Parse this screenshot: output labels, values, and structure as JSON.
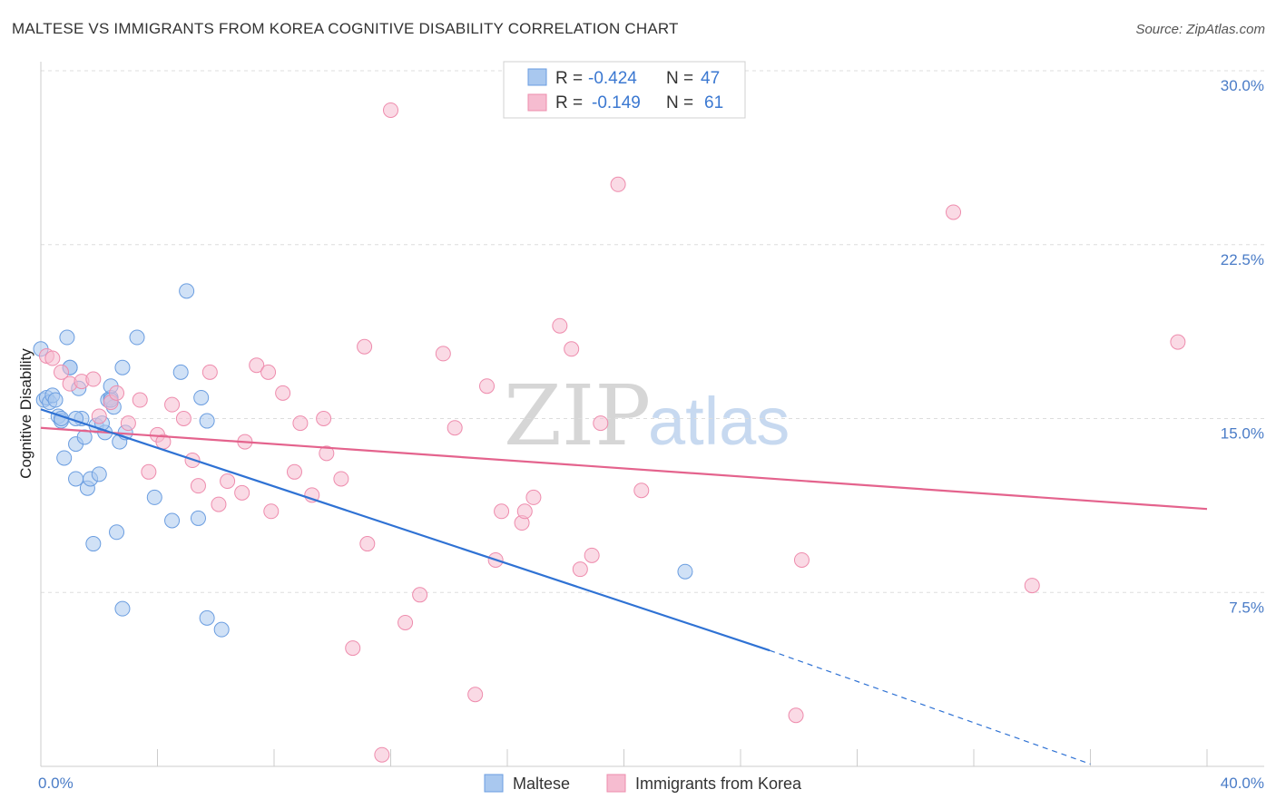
{
  "header": {
    "title": "MALTESE VS IMMIGRANTS FROM KOREA COGNITIVE DISABILITY CORRELATION CHART",
    "source": "Source: ZipAtlas.com"
  },
  "watermark": {
    "part1": "ZIP",
    "part2": "atlas"
  },
  "legend": {
    "rows": [
      {
        "r_label": "R =",
        "r_value": "-0.424",
        "n_label": "N =",
        "n_value": "47"
      },
      {
        "r_label": "R =",
        "r_value": "-0.149",
        "n_label": "N =",
        "n_value": "61"
      }
    ]
  },
  "bottom_legend": {
    "series1": "Maltese",
    "series2": "Immigrants from Korea"
  },
  "colors": {
    "blue_fill": "#a9c8ef",
    "blue_stroke": "#6a9de0",
    "blue_line": "#2f72d4",
    "pink_fill": "#f6bcd0",
    "pink_stroke": "#ee8cad",
    "pink_line": "#e4638d",
    "accent_text": "#3b78d1"
  },
  "chart_data": {
    "type": "scatter",
    "title": "MALTESE VS IMMIGRANTS FROM KOREA COGNITIVE DISABILITY CORRELATION CHART",
    "xlabel": "",
    "ylabel": "Cognitive Disability",
    "xlim": [
      0,
      40
    ],
    "ylim": [
      0,
      30
    ],
    "x_tick_labels": [
      "0.0%",
      "40.0%"
    ],
    "y_ticks": [
      7.5,
      15.0,
      22.5,
      30.0
    ],
    "y_tick_labels": [
      "7.5%",
      "15.0%",
      "22.5%",
      "30.0%"
    ],
    "series": [
      {
        "name": "Maltese",
        "r": -0.424,
        "n": 47,
        "trend": {
          "x0": 0,
          "y0": 15.4,
          "x1": 25,
          "y1": 5.0,
          "dash_x_end": 36,
          "dash_y_end": 0.1
        },
        "points": [
          [
            0,
            18.0
          ],
          [
            0.1,
            15.8
          ],
          [
            0.2,
            15.9
          ],
          [
            0.3,
            15.7
          ],
          [
            0.4,
            16.0
          ],
          [
            0.5,
            15.8
          ],
          [
            0.6,
            15.1
          ],
          [
            0.7,
            14.9
          ],
          [
            0.8,
            13.3
          ],
          [
            0.9,
            18.5
          ],
          [
            1.0,
            17.2
          ],
          [
            1.2,
            13.9
          ],
          [
            1.2,
            12.4
          ],
          [
            1.3,
            16.3
          ],
          [
            1.4,
            15.0
          ],
          [
            1.5,
            14.2
          ],
          [
            1.6,
            12.0
          ],
          [
            1.7,
            12.4
          ],
          [
            1.8,
            9.6
          ],
          [
            1.9,
            14.7
          ],
          [
            2.0,
            12.6
          ],
          [
            2.2,
            14.4
          ],
          [
            2.3,
            15.8
          ],
          [
            2.4,
            15.9
          ],
          [
            2.5,
            15.5
          ],
          [
            2.6,
            10.1
          ],
          [
            2.7,
            14.0
          ],
          [
            2.8,
            6.8
          ],
          [
            2.8,
            17.2
          ],
          [
            2.9,
            14.4
          ],
          [
            2.4,
            16.4
          ],
          [
            3.3,
            18.5
          ],
          [
            3.9,
            11.6
          ],
          [
            4.5,
            10.6
          ],
          [
            4.8,
            17.0
          ],
          [
            5.0,
            20.5
          ],
          [
            5.4,
            10.7
          ],
          [
            5.5,
            15.9
          ],
          [
            5.7,
            14.9
          ],
          [
            5.7,
            6.4
          ],
          [
            6.2,
            5.9
          ],
          [
            2.1,
            14.8
          ],
          [
            0.7,
            15.0
          ],
          [
            1.0,
            17.2
          ],
          [
            2.4,
            15.8
          ],
          [
            1.2,
            15.0
          ],
          [
            22.1,
            8.4
          ]
        ]
      },
      {
        "name": "Immigrants from Korea",
        "r": -0.149,
        "n": 61,
        "trend": {
          "x0": 0,
          "y0": 14.6,
          "x1": 40,
          "y1": 11.1
        },
        "points": [
          [
            0.2,
            17.7
          ],
          [
            0.4,
            17.6
          ],
          [
            0.7,
            17.0
          ],
          [
            1.0,
            16.5
          ],
          [
            1.4,
            16.6
          ],
          [
            1.8,
            16.7
          ],
          [
            2.0,
            15.1
          ],
          [
            2.4,
            15.7
          ],
          [
            2.6,
            16.1
          ],
          [
            3.0,
            14.8
          ],
          [
            3.4,
            15.8
          ],
          [
            3.7,
            12.7
          ],
          [
            4.0,
            14.3
          ],
          [
            4.2,
            14.0
          ],
          [
            4.5,
            15.6
          ],
          [
            4.9,
            15.0
          ],
          [
            5.2,
            13.2
          ],
          [
            5.4,
            12.1
          ],
          [
            5.8,
            17.0
          ],
          [
            6.1,
            11.3
          ],
          [
            6.4,
            12.3
          ],
          [
            6.9,
            11.8
          ],
          [
            7.0,
            14.0
          ],
          [
            7.4,
            17.3
          ],
          [
            7.8,
            17.0
          ],
          [
            7.9,
            11.0
          ],
          [
            8.3,
            16.1
          ],
          [
            8.7,
            12.7
          ],
          [
            8.9,
            14.8
          ],
          [
            9.3,
            11.7
          ],
          [
            9.7,
            15.0
          ],
          [
            9.8,
            13.5
          ],
          [
            10.3,
            12.4
          ],
          [
            10.7,
            5.1
          ],
          [
            11.1,
            18.1
          ],
          [
            11.2,
            9.6
          ],
          [
            11.7,
            0.5
          ],
          [
            12.0,
            28.3
          ],
          [
            12.5,
            6.2
          ],
          [
            13.0,
            7.4
          ],
          [
            13.8,
            17.8
          ],
          [
            14.2,
            14.6
          ],
          [
            14.9,
            3.1
          ],
          [
            15.3,
            16.4
          ],
          [
            15.6,
            8.9
          ],
          [
            15.8,
            11.0
          ],
          [
            16.5,
            10.5
          ],
          [
            16.6,
            11.0
          ],
          [
            16.9,
            11.6
          ],
          [
            17.8,
            19.0
          ],
          [
            18.2,
            18.0
          ],
          [
            18.5,
            8.5
          ],
          [
            18.9,
            9.1
          ],
          [
            19.2,
            14.8
          ],
          [
            19.8,
            25.1
          ],
          [
            20.6,
            11.9
          ],
          [
            25.9,
            2.2
          ],
          [
            26.1,
            8.9
          ],
          [
            31.3,
            23.9
          ],
          [
            34.0,
            7.8
          ],
          [
            39.0,
            18.3
          ]
        ]
      }
    ]
  }
}
